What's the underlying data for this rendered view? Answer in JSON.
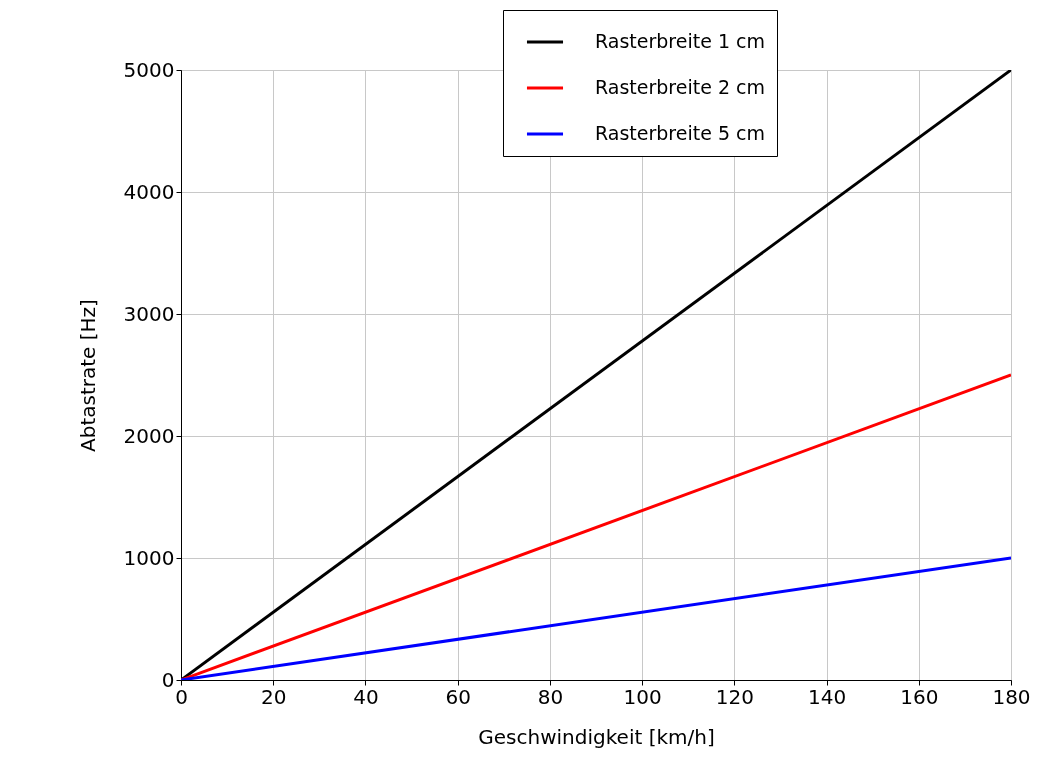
{
  "chart_data": {
    "type": "line",
    "xlabel": "Geschwindigkeit [km/h]",
    "ylabel": "Abtastrate [Hz]",
    "x": [
      0,
      180
    ],
    "series": [
      {
        "name": "Rasterbreite 1 cm",
        "color": "#000000",
        "values": [
          0,
          5000
        ]
      },
      {
        "name": "Rasterbreite 2 cm",
        "color": "#ff0000",
        "values": [
          0,
          2500
        ]
      },
      {
        "name": "Rasterbreite 5 cm",
        "color": "#0000ff",
        "values": [
          0,
          1000
        ]
      }
    ],
    "xlim": [
      0,
      180
    ],
    "xticks": [
      0,
      20,
      40,
      60,
      80,
      100,
      120,
      140,
      160,
      180
    ],
    "ylim": [
      0,
      5000
    ],
    "yticks": [
      0,
      1000,
      2000,
      3000,
      4000,
      5000
    ],
    "grid": true,
    "legend": "top right",
    "marker": "none",
    "line_style": "solid"
  }
}
